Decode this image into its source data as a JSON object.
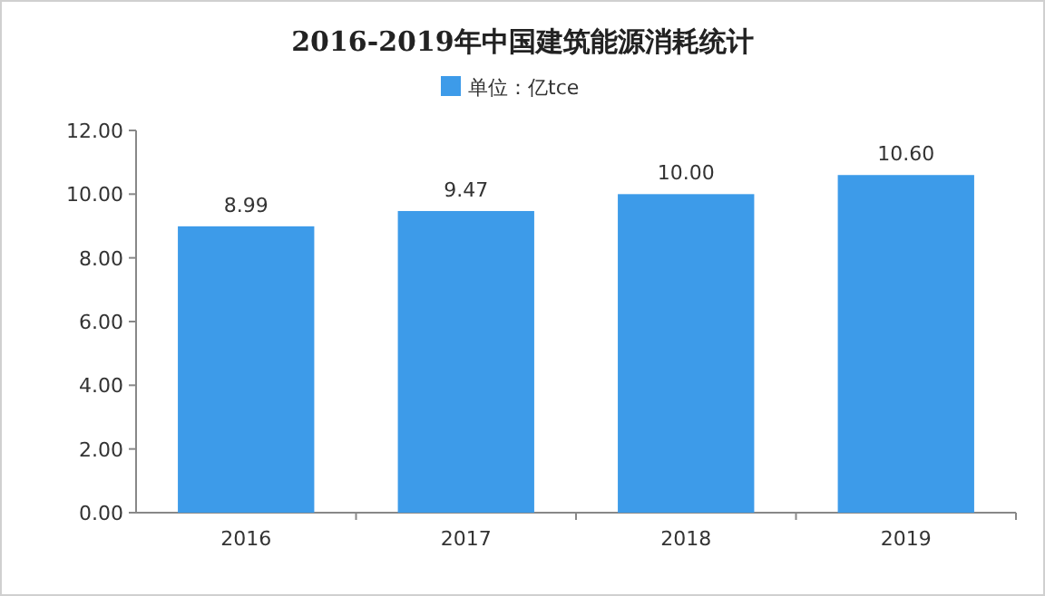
{
  "chart_data": {
    "type": "bar",
    "title": "2016-2019年中国建筑能源消耗统计",
    "categories": [
      "2016",
      "2017",
      "2018",
      "2019"
    ],
    "series": [
      {
        "name": "单位：亿tce",
        "color": "#3d9be9",
        "values": [
          8.99,
          9.47,
          10.0,
          10.6
        ],
        "value_labels": [
          "8.99",
          "9.47",
          "10.00",
          "10.60"
        ]
      }
    ],
    "ylim": [
      0,
      12
    ],
    "yticks": [
      {
        "value": 0,
        "label": "0.00"
      },
      {
        "value": 2,
        "label": "2.00"
      },
      {
        "value": 4,
        "label": "4.00"
      },
      {
        "value": 6,
        "label": "6.00"
      },
      {
        "value": 8,
        "label": "8.00"
      },
      {
        "value": 10,
        "label": "10.00"
      },
      {
        "value": 12,
        "label": "12.00"
      }
    ],
    "legend": "top",
    "grid": false
  }
}
